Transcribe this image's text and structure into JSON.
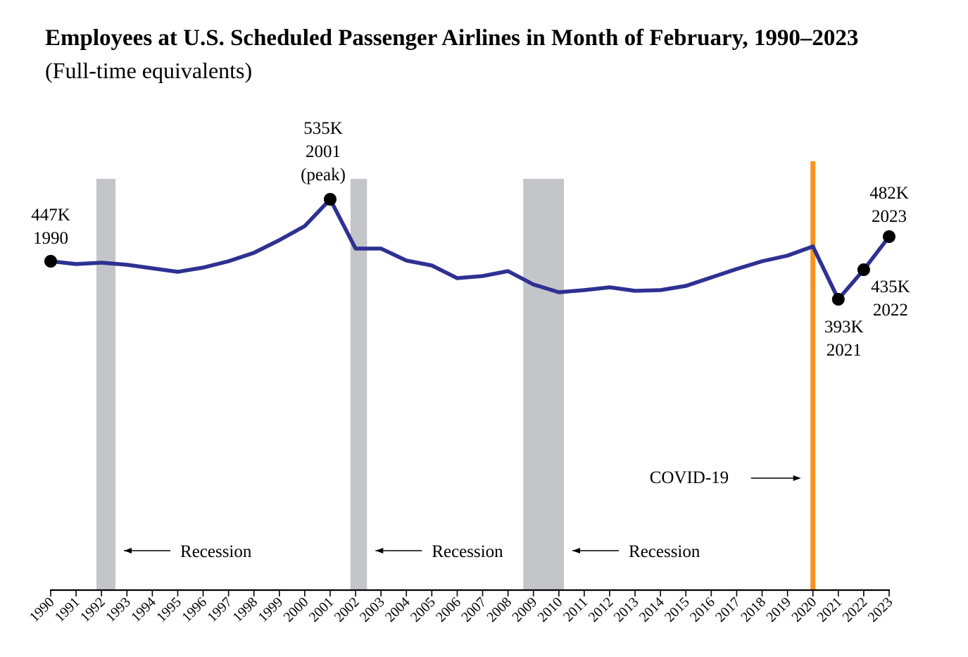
{
  "title": "Employees at U.S. Scheduled Passenger Airlines in Month of February, 1990–2023",
  "subtitle": "(Full-time equivalents)",
  "colors": {
    "line": "#2e3192",
    "recession": "#c4c5c8",
    "covid": "#f7941d",
    "marker": "#000000"
  },
  "chart_data": {
    "type": "line",
    "x": [
      1990,
      1991,
      1992,
      1993,
      1994,
      1995,
      1996,
      1997,
      1998,
      1999,
      2000,
      2001,
      2002,
      2003,
      2004,
      2005,
      2006,
      2007,
      2008,
      2009,
      2010,
      2011,
      2012,
      2013,
      2014,
      2015,
      2016,
      2017,
      2018,
      2019,
      2020,
      2021,
      2022,
      2023
    ],
    "xticks": [
      "1990",
      "1991",
      "1992",
      "1993",
      "1994",
      "1995",
      "1996",
      "1997",
      "1998",
      "1999",
      "2000",
      "2001",
      "2002",
      "2003",
      "2004",
      "2005",
      "2006",
      "2007",
      "2008",
      "2009",
      "2010",
      "2011",
      "2012",
      "2013",
      "2014",
      "2015",
      "2016",
      "2017",
      "2018",
      "2019",
      "2020",
      "2021",
      "2022",
      "2023"
    ],
    "series": [
      {
        "values": [
          447,
          443,
          445,
          442,
          437,
          432,
          438,
          447,
          459,
          477,
          497,
          535,
          465,
          465,
          448,
          441,
          423,
          426,
          433,
          414,
          403,
          406,
          410,
          405,
          406,
          412,
          424,
          436,
          447,
          455,
          468,
          393,
          435,
          482
        ]
      }
    ],
    "ylim": [
      0,
      600
    ],
    "recessions": [
      [
        1991.8,
        1992.55
      ],
      [
        2001.8,
        2002.45
      ],
      [
        2008.6,
        2010.2
      ]
    ],
    "recession_label": "Recession",
    "covid": {
      "x": 2020.0,
      "label": "COVID-19"
    },
    "annotations": [
      {
        "x": 1990,
        "lines": [
          "447K",
          "1990"
        ]
      },
      {
        "x": 2001,
        "lines": [
          "535K",
          "2001",
          "(peak)"
        ]
      },
      {
        "x": 2021,
        "lines": [
          "393K",
          "2021"
        ]
      },
      {
        "x": 2022,
        "lines": [
          "435K",
          "2022"
        ]
      },
      {
        "x": 2023,
        "lines": [
          "482K",
          "2023"
        ]
      }
    ],
    "grid": false
  }
}
